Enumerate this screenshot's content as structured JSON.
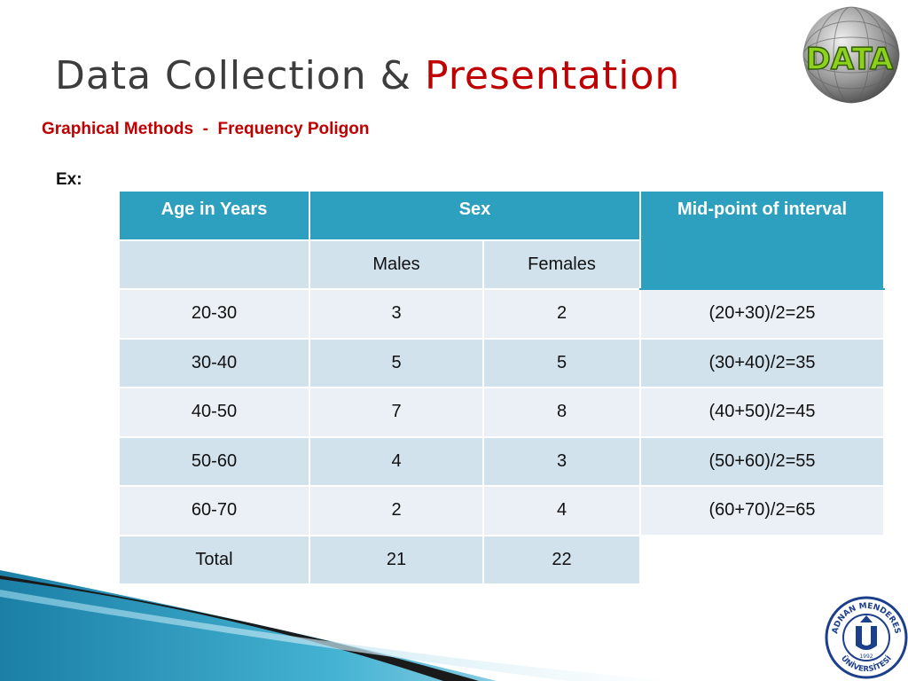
{
  "slide": {
    "title_part1": "Data Collection & ",
    "title_part2": "Presentation",
    "subtitle": "Graphical Methods  -  Frequency Poligon",
    "example_label": "Ex:"
  },
  "table": {
    "headers": {
      "age": "Age in Years",
      "sex": "Sex",
      "midpoint": "Mid-point of interval"
    },
    "subheaders": {
      "males": "Males",
      "females": "Females"
    },
    "rows": [
      {
        "age": "20-30",
        "males": "3",
        "females": "2",
        "mid": "(20+30)/2=25"
      },
      {
        "age": "30-40",
        "males": "5",
        "females": "5",
        "mid": "(30+40)/2=35"
      },
      {
        "age": "40-50",
        "males": "7",
        "females": "8",
        "mid": "(40+50)/2=45"
      },
      {
        "age": "50-60",
        "males": "4",
        "females": "3",
        "mid": "(50+60)/2=55"
      },
      {
        "age": "60-70",
        "males": "2",
        "females": "4",
        "mid": "(60+70)/2=65"
      }
    ],
    "total": {
      "label": "Total",
      "males": "21",
      "females": "22"
    }
  },
  "logos": {
    "data_logo_text": "DATA",
    "seal_text_top": "ADNAN MENDERES",
    "seal_text_bottom": "ÜNİVERSİTESİ",
    "seal_year": "1992"
  },
  "colors": {
    "accent_red": "#c00000",
    "header_teal": "#2ea0bf",
    "row_dark": "#d2e2ec",
    "row_light": "#eaf0f6",
    "title_gray": "#3d3d3d",
    "seal_blue": "#1c3f8c"
  }
}
